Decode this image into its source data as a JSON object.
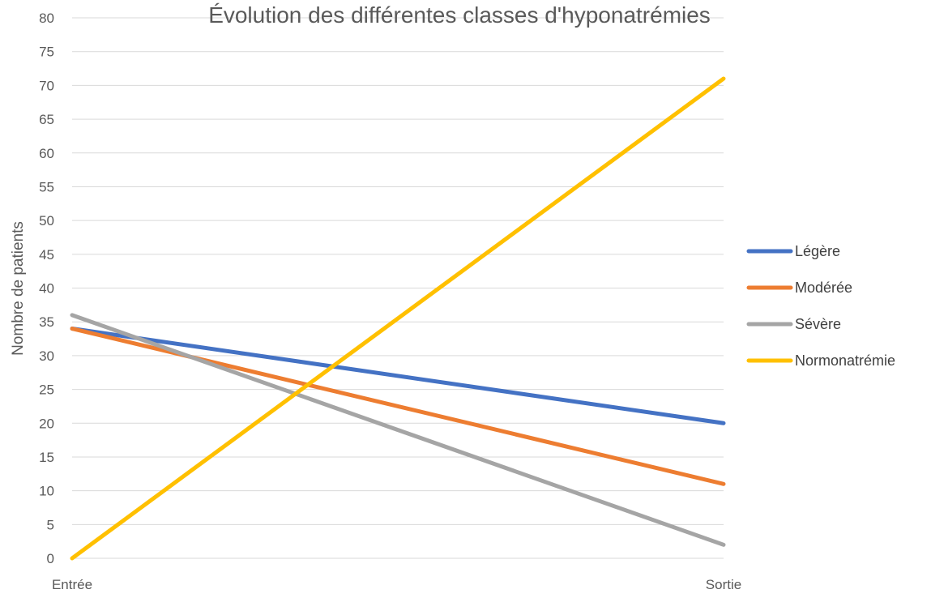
{
  "chart_data": {
    "type": "line",
    "title": "Évolution des différentes classes d'hyponatrémies",
    "xlabel": "",
    "ylabel": "Nombre de patients",
    "categories": [
      "Entrée",
      "Sortie"
    ],
    "ylim": [
      0,
      80
    ],
    "ytick_step": 5,
    "grid": true,
    "legend_position": "right",
    "series": [
      {
        "name": "Légère",
        "values": [
          34,
          20
        ],
        "color": "#4472C4"
      },
      {
        "name": "Modérée",
        "values": [
          34,
          11
        ],
        "color": "#ED7D31"
      },
      {
        "name": "Sévère",
        "values": [
          36,
          2
        ],
        "color": "#A5A5A5"
      },
      {
        "name": "Normonatrémie",
        "values": [
          0,
          71
        ],
        "color": "#FFC000"
      }
    ]
  }
}
